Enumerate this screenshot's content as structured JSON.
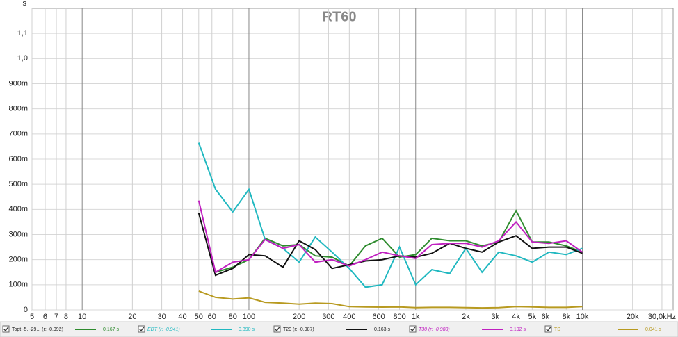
{
  "chart_data": {
    "type": "line",
    "title": "RT60",
    "y_unit": "s",
    "x": [
      50,
      63,
      80,
      100,
      125,
      160,
      200,
      250,
      315,
      400,
      500,
      630,
      800,
      1000,
      1250,
      1600,
      2000,
      2500,
      3150,
      4000,
      5000,
      6300,
      8000,
      10000
    ],
    "xlim": [
      5,
      35000
    ],
    "x_log": true,
    "grid": true,
    "xticks": [
      5,
      6,
      7,
      8,
      10,
      20,
      30,
      40,
      50,
      60,
      80,
      100,
      200,
      300,
      400,
      600,
      800,
      {
        "value": 1000,
        "label": "1k"
      },
      {
        "value": 2000,
        "label": "2k"
      },
      {
        "value": 3000,
        "label": "3k"
      },
      {
        "value": 4000,
        "label": "4k"
      },
      {
        "value": 5000,
        "label": "5k"
      },
      {
        "value": 6000,
        "label": "6k"
      },
      {
        "value": 8000,
        "label": "8k"
      },
      {
        "value": 10000,
        "label": "10k"
      },
      {
        "value": 20000,
        "label": "20k"
      },
      {
        "value": 30000,
        "label": "30,0kHz"
      }
    ],
    "ylim": [
      0,
      1.2
    ],
    "yticks": [
      0,
      {
        "value": 0.1,
        "label": "100m"
      },
      {
        "value": 0.2,
        "label": "200m"
      },
      {
        "value": 0.3,
        "label": "300m"
      },
      {
        "value": 0.4,
        "label": "400m"
      },
      {
        "value": 0.5,
        "label": "500m"
      },
      {
        "value": 0.6,
        "label": "600m"
      },
      {
        "value": 0.7,
        "label": "700m"
      },
      {
        "value": 0.8,
        "label": "800m"
      },
      {
        "value": 0.9,
        "label": "900m"
      },
      {
        "value": 1.0,
        "label": "1,0"
      },
      {
        "value": 1.1,
        "label": "1,1"
      }
    ],
    "series": [
      {
        "name": "Topt -5..-29... (r: -0,992)",
        "color": "#2e8b2e",
        "legend_value": "0,167 s",
        "values": [
          null,
          0.15,
          0.17,
          0.2,
          0.285,
          0.255,
          0.26,
          0.215,
          0.21,
          0.175,
          0.255,
          0.285,
          0.21,
          0.22,
          0.285,
          0.275,
          0.275,
          0.255,
          0.27,
          0.395,
          0.27,
          0.27,
          0.255,
          0.23
        ]
      },
      {
        "name": "EDT (r: -0,941)",
        "color": "#20b8c0",
        "legend_value": "0,390 s",
        "values": [
          0.665,
          0.48,
          0.39,
          0.48,
          0.28,
          0.245,
          0.19,
          0.29,
          0.23,
          0.165,
          0.09,
          0.1,
          0.25,
          0.1,
          0.16,
          0.145,
          0.245,
          0.15,
          0.23,
          0.215,
          0.19,
          0.23,
          0.22,
          0.245
        ]
      },
      {
        "name": "T20 (r: -0,987)",
        "color": "#111111",
        "legend_value": "0,163 s",
        "values": [
          0.385,
          0.138,
          0.165,
          0.22,
          0.215,
          0.17,
          0.275,
          0.24,
          0.165,
          0.18,
          0.195,
          0.2,
          0.215,
          0.21,
          0.225,
          0.265,
          0.245,
          0.23,
          0.27,
          0.295,
          0.245,
          0.25,
          0.25,
          0.225
        ]
      },
      {
        "name": "T30 (r: -0,988)",
        "color": "#c020c0",
        "legend_value": "0,192 s",
        "values": [
          0.435,
          0.15,
          0.19,
          0.2,
          0.28,
          0.245,
          0.26,
          0.19,
          0.2,
          0.175,
          0.2,
          0.23,
          0.215,
          0.205,
          0.26,
          0.265,
          0.265,
          0.25,
          0.275,
          0.35,
          0.27,
          0.265,
          0.275,
          0.23
        ]
      },
      {
        "name": "TS",
        "color": "#b89a20",
        "legend_value": "0,041 s",
        "values": [
          0.075,
          0.05,
          0.043,
          0.048,
          0.03,
          0.027,
          0.023,
          0.027,
          0.025,
          0.013,
          0.012,
          0.011,
          0.012,
          0.009,
          0.01,
          0.01,
          0.009,
          0.008,
          0.009,
          0.013,
          0.012,
          0.01,
          0.01,
          0.013
        ]
      }
    ]
  }
}
